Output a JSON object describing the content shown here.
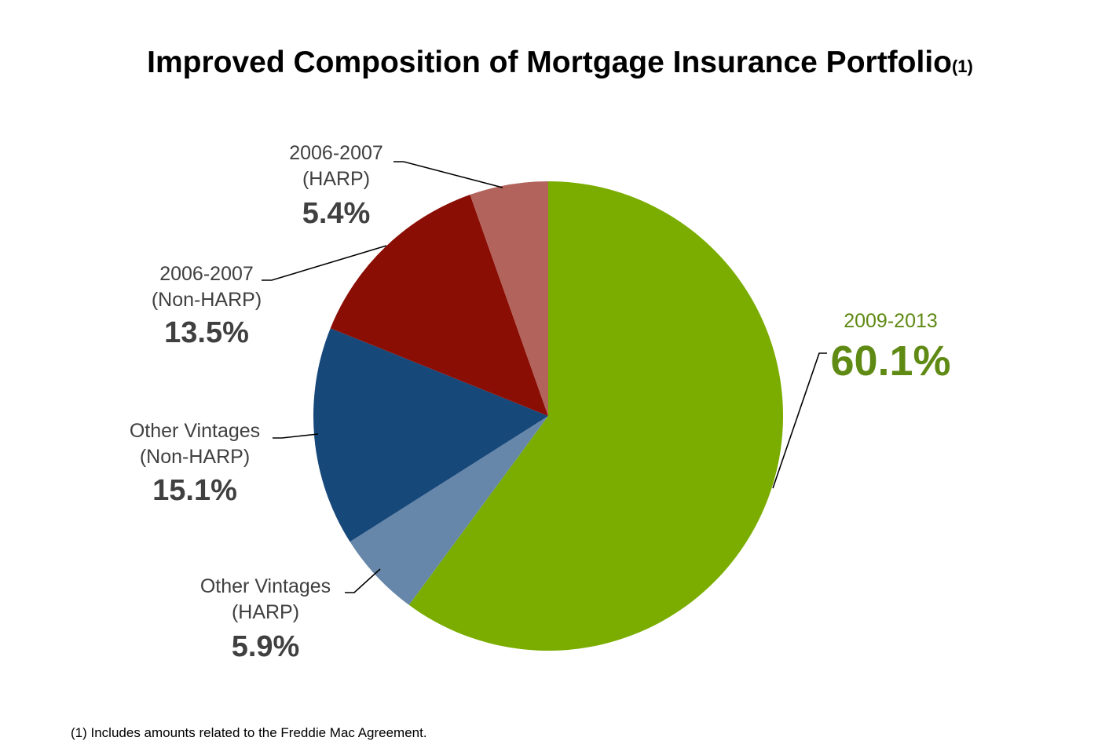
{
  "title": "Improved Composition of Mortgage Insurance Portfolio",
  "title_note": "(1)",
  "footnote": "(1)  Includes amounts related to the  Freddie Mac Agreement.",
  "chart_data": {
    "type": "pie",
    "slices": [
      {
        "label": [
          "2009-2013"
        ],
        "value": 60.1,
        "value_label": "60.1%",
        "color": "#7aad00",
        "label_color": "#5f8a14"
      },
      {
        "label": [
          "Other Vintages",
          "(HARP)"
        ],
        "value": 5.9,
        "value_label": "5.9%",
        "color": "#6787aa",
        "label_color": "#404040"
      },
      {
        "label": [
          "Other Vintages",
          "(Non-HARP)"
        ],
        "value": 15.1,
        "value_label": "15.1%",
        "color": "#17487a",
        "label_color": "#404040"
      },
      {
        "label": [
          "2006-2007",
          "(Non-HARP)"
        ],
        "value": 13.5,
        "value_label": "13.5%",
        "color": "#8b0e04",
        "label_color": "#404040"
      },
      {
        "label": [
          "2006-2007",
          "(HARP)"
        ],
        "value": 5.4,
        "value_label": "5.4%",
        "color": "#b2635c",
        "label_color": "#404040"
      }
    ]
  }
}
